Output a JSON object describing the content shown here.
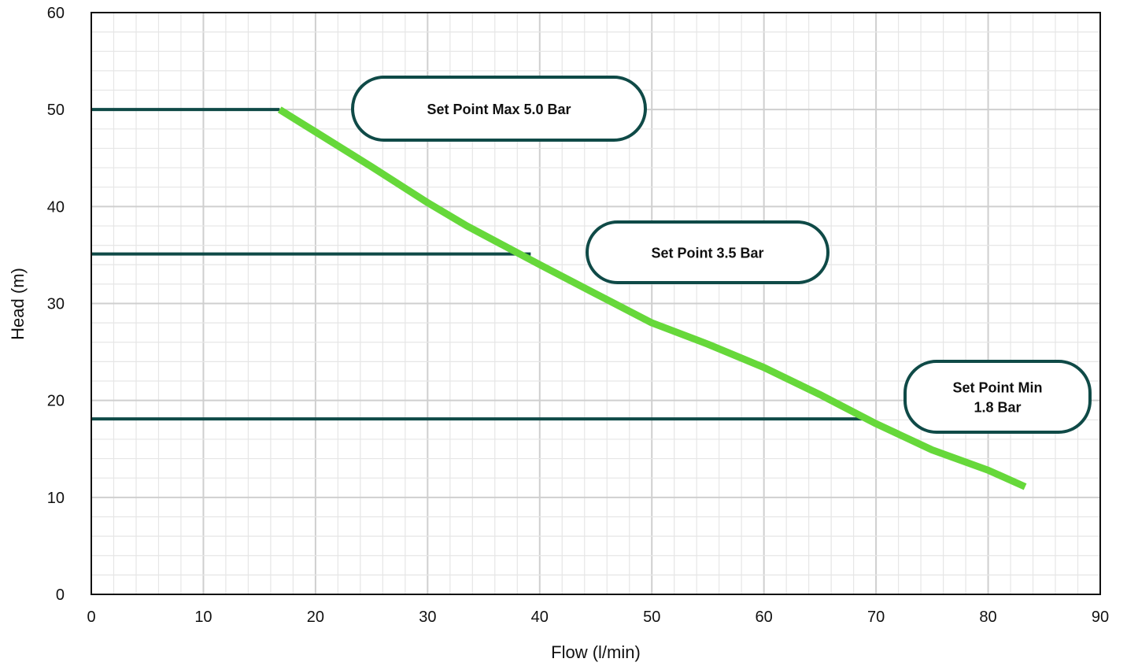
{
  "chart_data": {
    "type": "line",
    "xlabel": "Flow (l/min)",
    "ylabel": "Head (m)",
    "xlim": [
      0,
      90
    ],
    "ylim": [
      0,
      60
    ],
    "x_ticks": [
      0,
      10,
      20,
      30,
      40,
      50,
      60,
      70,
      80,
      90
    ],
    "y_ticks": [
      0,
      10,
      20,
      30,
      40,
      50,
      60
    ],
    "grid": true,
    "series": [
      {
        "color": "#66d83a",
        "x": [
          16.8,
          20,
          25,
          30,
          33.5,
          40,
          45,
          50,
          55,
          60,
          65,
          70,
          75,
          80,
          83.3
        ],
        "y": [
          50,
          47.7,
          44.1,
          40.4,
          38.0,
          34.0,
          31.0,
          28.0,
          25.8,
          23.4,
          20.6,
          17.6,
          14.9,
          12.8,
          11.1
        ]
      }
    ],
    "setpoint_lines": [
      {
        "head": 50,
        "x_end": 16.8,
        "color": "#0f4a47"
      },
      {
        "head": 35.1,
        "x_end": 39.2,
        "color": "#0f4a47"
      },
      {
        "head": 18.1,
        "x_end": 69.5,
        "color": "#0f4a47"
      }
    ],
    "annotations": [
      {
        "lines": [
          "Set Point Max 5.0 Bar"
        ]
      },
      {
        "lines": [
          "Set Point 3.5 Bar"
        ]
      },
      {
        "lines": [
          "Set Point Min",
          "1.8 Bar"
        ]
      }
    ]
  }
}
